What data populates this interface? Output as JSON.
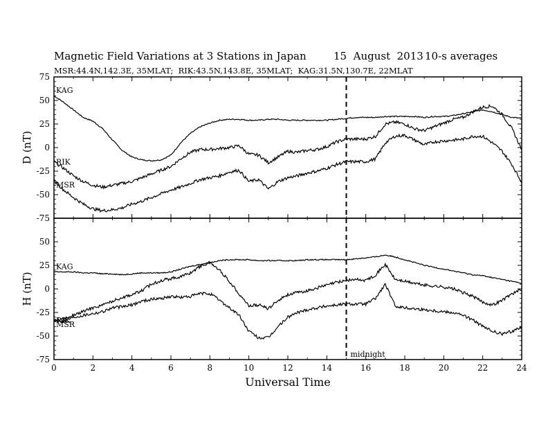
{
  "header": {
    "title": "Magnetic Field Variations at 3 Stations in Japan",
    "date": "15  August  2013",
    "averaging": "10-s averages",
    "stations": "MSR:44.4N,142.3E, 35MLAT;  RIK:43.5N,143.8E, 35MLAT;  KAG:31.5N,130.7E, 22MLAT"
  },
  "chart_data": [
    {
      "type": "line",
      "panel": "top",
      "ylabel": "D (nT)",
      "xlabel": "",
      "xlim": [
        0,
        24
      ],
      "ylim": [
        -75,
        75
      ],
      "yticks": [
        -75,
        -50,
        -25,
        0,
        25,
        50,
        75
      ],
      "xticks": [
        0,
        2,
        4,
        6,
        8,
        10,
        12,
        14,
        16,
        18,
        20,
        22,
        24
      ],
      "x": [
        0,
        0.5,
        1,
        1.5,
        2,
        2.5,
        3,
        3.5,
        4,
        4.5,
        5,
        5.5,
        6,
        6.5,
        7,
        7.5,
        8,
        8.5,
        9,
        9.5,
        10,
        10.5,
        11,
        11.5,
        12,
        12.5,
        13,
        13.5,
        14,
        14.5,
        15,
        15.5,
        16,
        16.5,
        17,
        17.5,
        18,
        18.5,
        19,
        19.5,
        20,
        20.5,
        21,
        21.5,
        22,
        22.5,
        23,
        23.5,
        24
      ],
      "series": [
        {
          "name": "KAG",
          "values": [
            55,
            48,
            40,
            32,
            28,
            20,
            8,
            -3,
            -10,
            -13,
            -14,
            -13,
            -8,
            5,
            15,
            22,
            26,
            29,
            30,
            30,
            29,
            29,
            30,
            30,
            29,
            29,
            29,
            29,
            29,
            30,
            31,
            32,
            32,
            32,
            33,
            33,
            33,
            33,
            32,
            33,
            33,
            34,
            36,
            38,
            40,
            38,
            35,
            32,
            31
          ]
        },
        {
          "name": "RIK",
          "values": [
            -15,
            -22,
            -30,
            -36,
            -40,
            -42,
            -40,
            -38,
            -36,
            -32,
            -28,
            -24,
            -20,
            -12,
            -5,
            -2,
            -2,
            -1,
            0,
            2,
            -7,
            -8,
            -16,
            -10,
            -4,
            -5,
            -3,
            -2,
            1,
            6,
            9,
            9,
            9,
            12,
            25,
            27,
            25,
            20,
            18,
            22,
            26,
            30,
            32,
            38,
            43,
            44,
            35,
            20,
            -2
          ]
        },
        {
          "name": "MSR",
          "values": [
            -35,
            -45,
            -53,
            -60,
            -65,
            -67,
            -66,
            -64,
            -60,
            -57,
            -53,
            -49,
            -45,
            -42,
            -38,
            -34,
            -32,
            -30,
            -26,
            -24,
            -36,
            -34,
            -44,
            -36,
            -32,
            -30,
            -27,
            -25,
            -22,
            -18,
            -15,
            -15,
            -15,
            -12,
            5,
            12,
            13,
            8,
            3,
            6,
            7,
            8,
            9,
            12,
            12,
            5,
            -4,
            -18,
            -37
          ]
        }
      ]
    },
    {
      "type": "line",
      "panel": "bottom",
      "ylabel": "H (nT)",
      "xlabel": "Universal Time",
      "xlim": [
        0,
        24
      ],
      "ylim": [
        -75,
        75
      ],
      "yticks": [
        -75,
        -50,
        -25,
        0,
        25,
        50
      ],
      "xticks": [
        0,
        2,
        4,
        6,
        8,
        10,
        12,
        14,
        16,
        18,
        20,
        22,
        24
      ],
      "x": [
        0,
        0.5,
        1,
        1.5,
        2,
        2.5,
        3,
        3.5,
        4,
        4.5,
        5,
        5.5,
        6,
        6.5,
        7,
        7.5,
        8,
        8.5,
        9,
        9.5,
        10,
        10.5,
        11,
        11.5,
        12,
        12.5,
        13,
        13.5,
        14,
        14.5,
        15,
        15.5,
        16,
        16.5,
        17,
        17.5,
        18,
        18.5,
        19,
        19.5,
        20,
        20.5,
        21,
        21.5,
        22,
        22.5,
        23,
        23.5,
        24
      ],
      "series": [
        {
          "name": "KAG",
          "values": [
            18,
            18,
            18,
            17,
            17,
            16,
            16,
            15,
            16,
            17,
            17,
            17,
            18,
            21,
            24,
            26,
            28,
            30,
            31,
            31,
            31,
            30,
            30,
            30,
            30,
            30,
            31,
            31,
            31,
            31,
            31,
            32,
            33,
            34,
            36,
            34,
            31,
            28,
            25,
            23,
            21,
            19,
            17,
            15,
            14,
            12,
            10,
            8,
            6
          ]
        },
        {
          "name": "RIK",
          "values": [
            -33,
            -32,
            -28,
            -24,
            -20,
            -17,
            -13,
            -9,
            -6,
            -2,
            5,
            9,
            11,
            13,
            17,
            24,
            28,
            20,
            8,
            -5,
            -18,
            -17,
            -21,
            -12,
            -6,
            -4,
            -2,
            1,
            4,
            7,
            9,
            10,
            9,
            15,
            26,
            10,
            8,
            6,
            4,
            3,
            2,
            0,
            -4,
            -8,
            -14,
            -17,
            -12,
            -5,
            -1
          ]
        },
        {
          "name": "MSR",
          "values": [
            -33,
            -34,
            -30,
            -28,
            -26,
            -24,
            -20,
            -19,
            -17,
            -13,
            -11,
            -10,
            -8,
            -9,
            -8,
            -5,
            -5,
            -12,
            -20,
            -28,
            -45,
            -52,
            -52,
            -40,
            -30,
            -25,
            -22,
            -20,
            -18,
            -17,
            -16,
            -16,
            -16,
            -10,
            5,
            -18,
            -20,
            -21,
            -22,
            -23,
            -24,
            -25,
            -28,
            -33,
            -40,
            -45,
            -48,
            -45,
            -40
          ]
        }
      ],
      "annotations": [
        {
          "x": 15,
          "text": "midnight"
        }
      ]
    }
  ]
}
